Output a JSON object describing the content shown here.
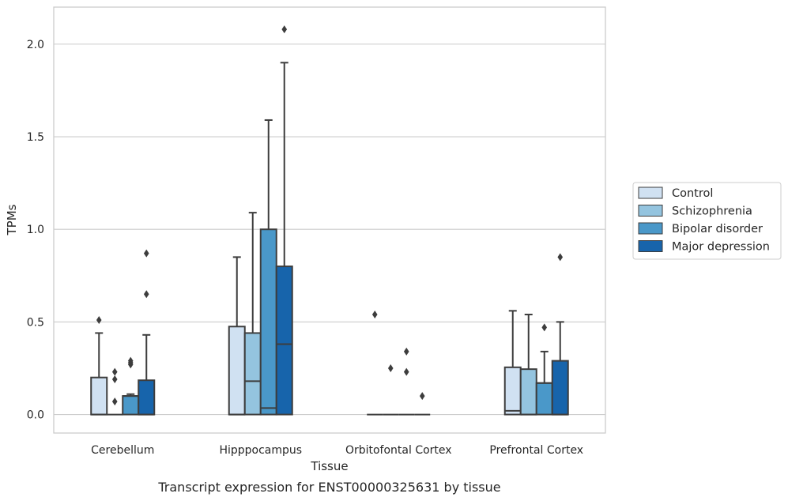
{
  "chart_data": {
    "type": "box",
    "title": "",
    "xlabel": "Tissue",
    "ylabel": "TPMs",
    "caption": "Transcript expression for ENST00000325631 by tissue",
    "ylim": [
      -0.1,
      2.2
    ],
    "yticks": [
      "0.0",
      "0.5",
      "1.0",
      "1.5",
      "2.0"
    ],
    "grid": true,
    "legend_position": "right",
    "categories": [
      "Cerebellum",
      "Hipppocampus",
      "Orbitofontal Cortex",
      "Prefrontal Cortex"
    ],
    "series": [
      {
        "name": "Control",
        "color": "#d0e1f2",
        "boxes": [
          {
            "q1": 0.0,
            "median": 0.0,
            "q3": 0.2,
            "whisker_low": 0.0,
            "whisker_high": 0.44,
            "outliers": [
              0.51
            ]
          },
          {
            "q1": 0.0,
            "median": 0.0,
            "q3": 0.475,
            "whisker_low": 0.0,
            "whisker_high": 0.85,
            "outliers": []
          },
          {
            "q1": 0.0,
            "median": 0.0,
            "q3": 0.0,
            "whisker_low": 0.0,
            "whisker_high": 0.0,
            "outliers": [
              0.54
            ]
          },
          {
            "q1": 0.0,
            "median": 0.02,
            "q3": 0.255,
            "whisker_low": 0.0,
            "whisker_high": 0.56,
            "outliers": []
          }
        ]
      },
      {
        "name": "Schizophrenia",
        "color": "#94c4df",
        "boxes": [
          {
            "q1": 0.0,
            "median": 0.0,
            "q3": 0.0,
            "whisker_low": 0.0,
            "whisker_high": 0.0,
            "outliers": [
              0.07,
              0.19,
              0.23
            ]
          },
          {
            "q1": 0.0,
            "median": 0.18,
            "q3": 0.44,
            "whisker_low": 0.0,
            "whisker_high": 1.09,
            "outliers": []
          },
          {
            "q1": 0.0,
            "median": 0.0,
            "q3": 0.0,
            "whisker_low": 0.0,
            "whisker_high": 0.0,
            "outliers": [
              0.25
            ]
          },
          {
            "q1": 0.0,
            "median": 0.0,
            "q3": 0.245,
            "whisker_low": 0.0,
            "whisker_high": 0.54,
            "outliers": []
          }
        ]
      },
      {
        "name": "Bipolar disorder",
        "color": "#4a98c9",
        "boxes": [
          {
            "q1": 0.0,
            "median": 0.1,
            "q3": 0.1,
            "whisker_low": 0.0,
            "whisker_high": 0.11,
            "outliers": [
              0.27,
              0.28,
              0.29
            ]
          },
          {
            "q1": 0.0,
            "median": 0.035,
            "q3": 1.0,
            "whisker_low": 0.0,
            "whisker_high": 1.59,
            "outliers": []
          },
          {
            "q1": 0.0,
            "median": 0.0,
            "q3": 0.0,
            "whisker_low": 0.0,
            "whisker_high": 0.0,
            "outliers": [
              0.23,
              0.34
            ]
          },
          {
            "q1": 0.0,
            "median": 0.17,
            "q3": 0.17,
            "whisker_low": 0.0,
            "whisker_high": 0.34,
            "outliers": [
              0.47
            ]
          }
        ]
      },
      {
        "name": "Major depression",
        "color": "#1764ab",
        "boxes": [
          {
            "q1": 0.0,
            "median": 0.0,
            "q3": 0.185,
            "whisker_low": 0.0,
            "whisker_high": 0.43,
            "outliers": [
              0.65,
              0.87
            ]
          },
          {
            "q1": 0.0,
            "median": 0.38,
            "q3": 0.8,
            "whisker_low": 0.0,
            "whisker_high": 1.9,
            "outliers": [
              2.08
            ]
          },
          {
            "q1": 0.0,
            "median": 0.0,
            "q3": 0.0,
            "whisker_low": 0.0,
            "whisker_high": 0.0,
            "outliers": [
              0.1
            ]
          },
          {
            "q1": 0.0,
            "median": 0.0,
            "q3": 0.29,
            "whisker_low": 0.0,
            "whisker_high": 0.5,
            "outliers": [
              0.85
            ]
          }
        ]
      }
    ]
  }
}
